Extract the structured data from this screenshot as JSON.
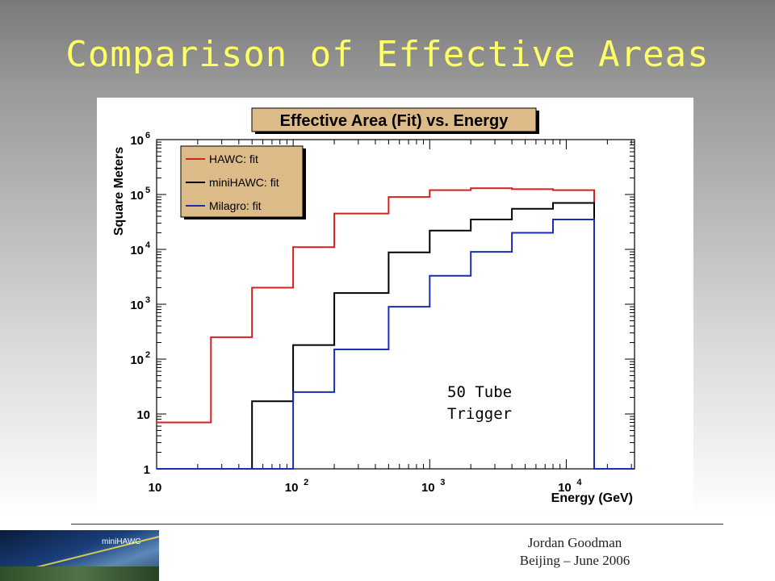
{
  "slide": {
    "title": "Comparison of Effective Areas",
    "footer_line1": "Jordan Goodman",
    "footer_line2": "Beijing – June 2006",
    "logo_label": "miniHAWC"
  },
  "chart_data": {
    "type": "line",
    "step": true,
    "title": "Effective Area (Fit) vs. Energy",
    "xlabel": "Energy (GeV)",
    "ylabel": "Square Meters",
    "x_scale": "log",
    "y_scale": "log",
    "xlim": [
      10,
      31623
    ],
    "ylim": [
      1,
      1000000
    ],
    "x_ticks": [
      {
        "value": 10,
        "base": "10",
        "exp": ""
      },
      {
        "value": 100,
        "base": "10",
        "exp": "2"
      },
      {
        "value": 1000,
        "base": "10",
        "exp": "3"
      },
      {
        "value": 10000,
        "base": "10",
        "exp": "4"
      }
    ],
    "y_ticks": [
      {
        "value": 1,
        "base": "1",
        "exp": ""
      },
      {
        "value": 10,
        "base": "10",
        "exp": ""
      },
      {
        "value": 100,
        "base": "10",
        "exp": "2"
      },
      {
        "value": 1000,
        "base": "10",
        "exp": "3"
      },
      {
        "value": 10000,
        "base": "10",
        "exp": "4"
      },
      {
        "value": 100000,
        "base": "10",
        "exp": "5"
      },
      {
        "value": 1000000,
        "base": "10",
        "exp": "6"
      }
    ],
    "bin_edges": [
      10,
      25,
      50,
      100,
      200,
      500,
      1000,
      2000,
      4000,
      8000,
      16000,
      31623
    ],
    "series": [
      {
        "name": "HAWC: fit",
        "color": "#d42020",
        "values": [
          7,
          250,
          2000,
          11000,
          45000,
          90000,
          120000,
          130000,
          125000,
          120000,
          1
        ]
      },
      {
        "name": "miniHAWC: fit",
        "color": "#000000",
        "values": [
          1,
          1,
          17,
          180,
          1600,
          8800,
          22000,
          35000,
          55000,
          70000,
          1
        ]
      },
      {
        "name": "Milagro: fit",
        "color": "#1a2fb0",
        "values": [
          1,
          1,
          1,
          25,
          150,
          900,
          3300,
          9000,
          20000,
          35000,
          1
        ]
      }
    ],
    "annotation": [
      "50 Tube",
      "Trigger"
    ],
    "legend_position": "top-left",
    "legend_bg": "#ddbb88",
    "grid": false
  }
}
